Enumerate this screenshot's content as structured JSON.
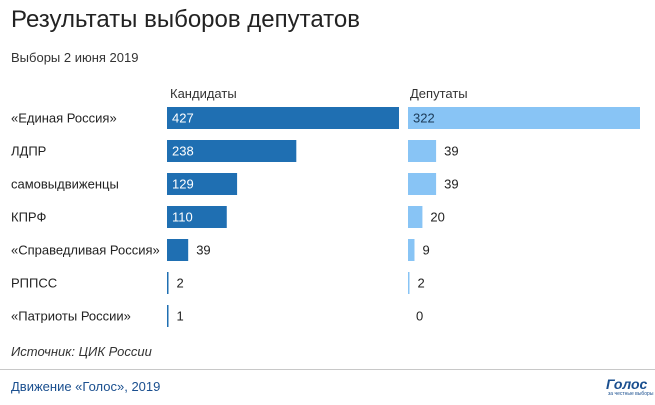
{
  "chart_data": {
    "type": "bar",
    "title": "Результаты выборов депутатов",
    "subtitle": "Выборы 2 июня 2019",
    "categories": [
      "«Единая Россия»",
      "ЛДПР",
      "самовыдвиженцы",
      "КПРФ",
      "«Справедливая Россия»",
      "РППСС",
      "«Патриоты России»"
    ],
    "series": [
      {
        "name": "Кандидаты",
        "values": [
          427,
          238,
          129,
          110,
          39,
          2,
          1
        ],
        "color": "#1f6fb2"
      },
      {
        "name": "Депутаты",
        "values": [
          322,
          39,
          39,
          20,
          9,
          2,
          0
        ],
        "color": "#88c4f5"
      }
    ],
    "source": "Источник: ЦИК России"
  },
  "footer": {
    "credit": "Движение «Голос», 2019",
    "logo_text": "Голос",
    "logo_subtext": "за честные выборы"
  }
}
